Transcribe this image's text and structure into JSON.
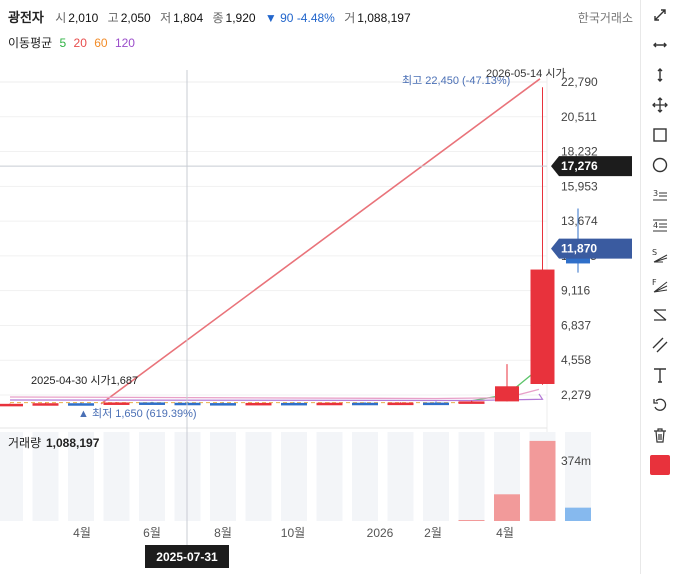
{
  "header": {
    "name": "광전자",
    "open_label": "시",
    "open": "2,010",
    "high_label": "고",
    "high": "2,050",
    "low_label": "저",
    "low": "1,804",
    "close_label": "종",
    "close": "1,920",
    "change": "▼ 90 -4.48%",
    "volume_label": "거",
    "volume": "1,088,197",
    "exchange": "한국거래소"
  },
  "ma_legend": {
    "label": "이동평균",
    "periods": [
      {
        "text": "5",
        "color": "#2fb344"
      },
      {
        "text": "20",
        "color": "#e84d4d"
      },
      {
        "text": "60",
        "color": "#f28c28"
      },
      {
        "text": "120",
        "color": "#9b4dca"
      }
    ]
  },
  "chart_data": {
    "type": "candlestick",
    "y_ticks": [
      "22,790",
      "20,511",
      "18,232",
      "15,953",
      "13,674",
      "11,395",
      "9,116",
      "6,837",
      "4,558",
      "2,279"
    ],
    "x_ticks": [
      "4월",
      "6월",
      "8월",
      "10월",
      "2026",
      "2월",
      "4월"
    ],
    "current_price": "11,870",
    "crosshair_price": "17,276",
    "crosshair_date": "2025-07-31",
    "annotations": {
      "high": "최고 22,450 (-47.13%)",
      "high_date": "2026-05-14 시가",
      "low": "▲ 최저 1,650 (619.39%)",
      "open_note": "2025-04-30 시가1,687"
    },
    "candles": [
      {
        "o": 1687,
        "h": 1720,
        "l": 1650,
        "c": 1700
      },
      {
        "o": 1700,
        "h": 1760,
        "l": 1680,
        "c": 1740
      },
      {
        "o": 1740,
        "h": 1780,
        "l": 1700,
        "c": 1720
      },
      {
        "o": 1720,
        "h": 1800,
        "l": 1700,
        "c": 1790
      },
      {
        "o": 1790,
        "h": 1830,
        "l": 1740,
        "c": 1770
      },
      {
        "o": 1770,
        "h": 1820,
        "l": 1730,
        "c": 1750
      },
      {
        "o": 1750,
        "h": 1790,
        "l": 1690,
        "c": 1720
      },
      {
        "o": 1720,
        "h": 1780,
        "l": 1700,
        "c": 1760
      },
      {
        "o": 1760,
        "h": 1800,
        "l": 1720,
        "c": 1740
      },
      {
        "o": 1740,
        "h": 1790,
        "l": 1700,
        "c": 1770
      },
      {
        "o": 1770,
        "h": 1800,
        "l": 1710,
        "c": 1730
      },
      {
        "o": 1730,
        "h": 1800,
        "l": 1710,
        "c": 1780
      },
      {
        "o": 1780,
        "h": 1850,
        "l": 1700,
        "c": 1760
      },
      {
        "o": 1760,
        "h": 1900,
        "l": 1740,
        "c": 1860
      },
      {
        "o": 1860,
        "h": 4300,
        "l": 1850,
        "c": 2850
      },
      {
        "o": 3000,
        "h": 22450,
        "l": 2950,
        "c": 10500
      },
      {
        "o": 12400,
        "h": 14500,
        "l": 10300,
        "c": 10900
      }
    ],
    "volume_label": "거래량",
    "volume_value": "1,088,197",
    "volume_tick": "374m",
    "volume_bars": [
      0,
      0,
      0,
      0,
      0,
      0,
      0,
      0,
      0,
      0,
      0,
      0,
      0,
      1,
      90,
      270,
      45
    ],
    "volume_colors": [
      "#f29a9a",
      "#f29a9a",
      "#86b9ee"
    ]
  },
  "colors": {
    "up": "#e8323c",
    "down": "#2f6fc9",
    "trend": "#e9737a",
    "crosshair": "#1c1c1c",
    "current": "#3a5ba0"
  },
  "toolbar": [
    "expand-icon",
    "horizontal-resize-icon",
    "vertical-resize-icon",
    "move-icon",
    "rectangle-icon",
    "circle-icon",
    "fibonacci-3-icon",
    "fibonacci-4-icon",
    "gann-s-icon",
    "gann-fan-icon",
    "equal-lines-icon",
    "parallel-lines-icon",
    "text-icon",
    "undo-icon",
    "trash-icon",
    "color-swatch-icon"
  ]
}
